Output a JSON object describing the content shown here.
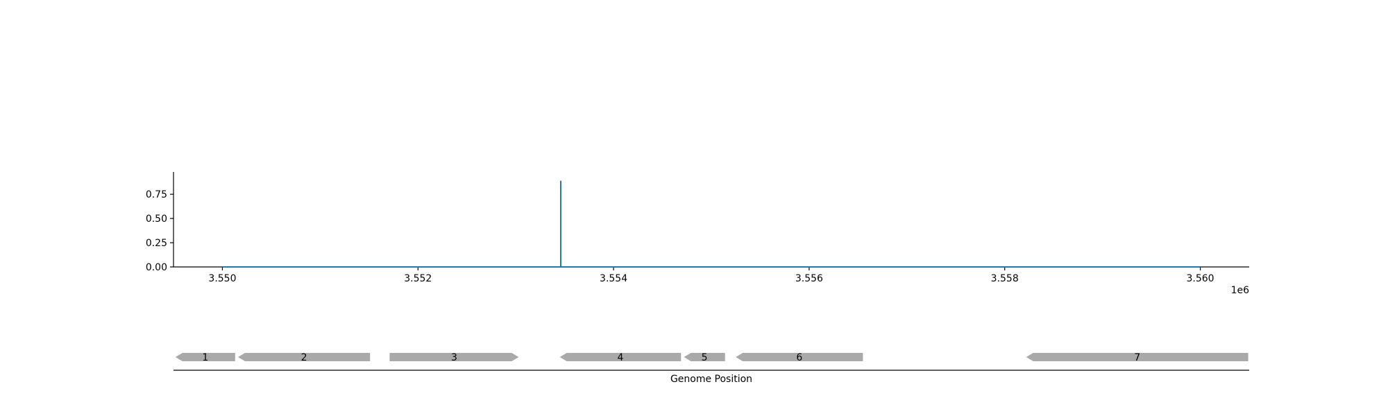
{
  "chart_data": [
    {
      "type": "line",
      "title": "",
      "xlabel": "",
      "ylabel": "",
      "x_offset_label": "1e6",
      "xlim": [
        3549500,
        3560500
      ],
      "ylim": [
        0,
        0.98
      ],
      "x_ticks": [
        3550000,
        3552000,
        3554000,
        3556000,
        3558000,
        3560000
      ],
      "x_tick_labels": [
        "3.550",
        "3.552",
        "3.554",
        "3.556",
        "3.558",
        "3.560"
      ],
      "y_ticks": [
        0,
        0.25,
        0.5,
        0.75
      ],
      "y_tick_labels": [
        "0.00",
        "0.25",
        "0.50",
        "0.75"
      ],
      "grid": false,
      "series": [
        {
          "color": "#1f77b4",
          "x": [
            3550000,
            3553460,
            3553460,
            3553460,
            3560000
          ],
          "y": [
            0,
            0,
            0.89,
            0,
            0
          ]
        }
      ]
    },
    {
      "type": "gene-track",
      "xlabel": "Genome Position",
      "xlim": [
        3549500,
        3560500
      ],
      "genes": [
        {
          "label": "1",
          "start": 3549520,
          "end": 3550130,
          "strand": "-"
        },
        {
          "label": "2",
          "start": 3550160,
          "end": 3551510,
          "strand": "-"
        },
        {
          "label": "3",
          "start": 3551710,
          "end": 3553030,
          "strand": "+"
        },
        {
          "label": "4",
          "start": 3553450,
          "end": 3554690,
          "strand": "-"
        },
        {
          "label": "5",
          "start": 3554720,
          "end": 3555140,
          "strand": "-"
        },
        {
          "label": "6",
          "start": 3555250,
          "end": 3556550,
          "strand": "-"
        },
        {
          "label": "7",
          "start": 3558220,
          "end": 3560490,
          "strand": "-"
        }
      ],
      "gene_color": "#a9a9a9"
    }
  ]
}
